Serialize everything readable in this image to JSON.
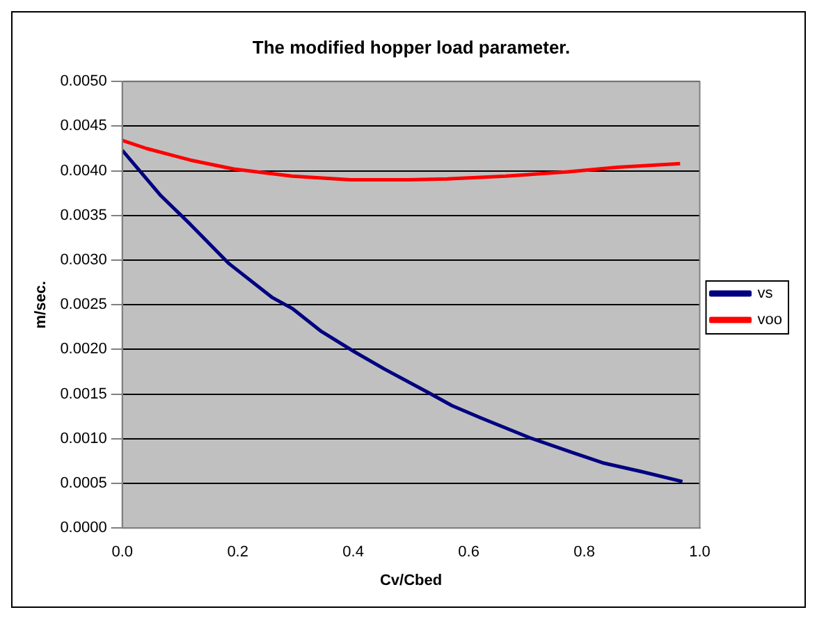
{
  "chart_data": {
    "type": "line",
    "title": "The modified hopper load parameter.",
    "xlabel": "Cv/Cbed",
    "ylabel": "m/sec.",
    "xlim": [
      0,
      1
    ],
    "xticks": [
      {
        "value": 0,
        "label": "0.0"
      },
      {
        "value": 0.2,
        "label": "0.2"
      },
      {
        "value": 0.4,
        "label": "0.4"
      },
      {
        "value": 0.6,
        "label": "0.6"
      },
      {
        "value": 0.8,
        "label": "0.8"
      },
      {
        "value": 1,
        "label": "1.0"
      }
    ],
    "ylim": [
      0,
      0.005
    ],
    "yticks": [
      {
        "value": 0,
        "label": "0.0000"
      },
      {
        "value": 0.0005,
        "label": "0.0005"
      },
      {
        "value": 0.001,
        "label": "0.0010"
      },
      {
        "value": 0.0015,
        "label": "0.0015"
      },
      {
        "value": 0.002,
        "label": "0.0020"
      },
      {
        "value": 0.0025,
        "label": "0.0025"
      },
      {
        "value": 0.003,
        "label": "0.0030"
      },
      {
        "value": 0.0035,
        "label": "0.0035"
      },
      {
        "value": 0.004,
        "label": "0.0040"
      },
      {
        "value": 0.0045,
        "label": "0.0045"
      },
      {
        "value": 0.005,
        "label": "0.0050"
      }
    ],
    "grid": "y",
    "legend": "right",
    "marker": "none",
    "line_style": "solid",
    "series": [
      {
        "name": "vs",
        "color": "#000080",
        "x": [
          0,
          0.067,
          0.118,
          0.185,
          0.26,
          0.294,
          0.345,
          0.403,
          0.454,
          0.529,
          0.571,
          0.622,
          0.706,
          0.782,
          0.832,
          0.9,
          0.97
        ],
        "values": [
          0.00423,
          0.00372,
          0.0034,
          0.00296,
          0.00258,
          0.00246,
          0.0022,
          0.00197,
          0.00178,
          0.00152,
          0.00137,
          0.00123,
          0.00101,
          0.00084,
          0.00073,
          0.00063,
          0.00052
        ]
      },
      {
        "name": "voo",
        "color": "#ff0000",
        "x": [
          0,
          0.042,
          0.118,
          0.193,
          0.294,
          0.395,
          0.496,
          0.563,
          0.664,
          0.773,
          0.857,
          0.966
        ],
        "values": [
          0.00434,
          0.00425,
          0.00412,
          0.00402,
          0.00394,
          0.0039,
          0.0039,
          0.00391,
          0.00394,
          0.00399,
          0.00404,
          0.00408
        ]
      }
    ]
  }
}
